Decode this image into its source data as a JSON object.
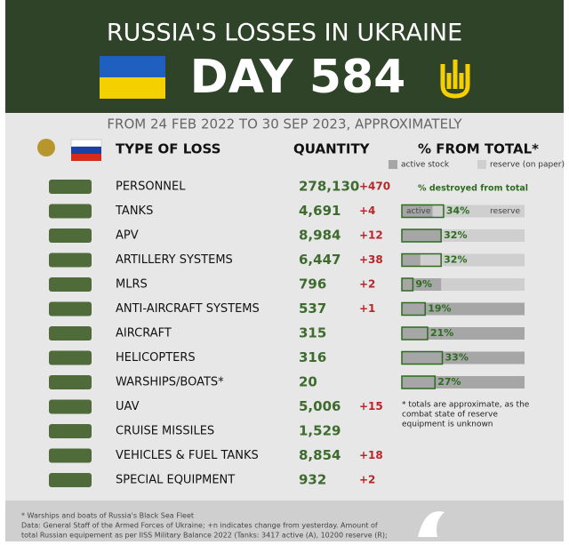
{
  "header": {
    "title": "RUSSIA'S LOSSES IN UKRAINE",
    "day": "DAY 584",
    "subtitle": "FROM 24 FEB 2022 TO 30 SEP 2023, APPROXIMATELY"
  },
  "columns": {
    "type": "TYPE OF LOSS",
    "quantity": "QUANTITY",
    "percent": "% FROM TOTAL*"
  },
  "legend": {
    "active": "active stock",
    "reserve": "reserve (on paper)",
    "destroyed": "% destroyed from total",
    "bar_active": "active",
    "bar_reserve": "reserve"
  },
  "rows": [
    {
      "name": "PERSONNEL",
      "quantity": "278,130",
      "change": "+470"
    },
    {
      "name": "TANKS",
      "quantity": "4,691",
      "change": "+4",
      "destroyed": 34,
      "destroyed_label": "34%",
      "active_share": 25
    },
    {
      "name": "APV",
      "quantity": "8,984",
      "change": "+12",
      "destroyed": 32,
      "destroyed_label": "32%",
      "active_share": 32
    },
    {
      "name": "ARTILLERY SYSTEMS",
      "quantity": "6,447",
      "change": "+38",
      "destroyed": 32,
      "destroyed_label": "32%",
      "active_share": 15
    },
    {
      "name": "MLRS",
      "quantity": "796",
      "change": "+2",
      "destroyed": 9,
      "destroyed_label": "9%",
      "active_share": 32
    },
    {
      "name": "ANTI-AIRCRAFT SYSTEMS",
      "quantity": "537",
      "change": "+1",
      "destroyed": 19,
      "destroyed_label": "19%",
      "active_share": 100
    },
    {
      "name": "AIRCRAFT",
      "quantity": "315",
      "destroyed": 21,
      "destroyed_label": "21%",
      "active_share": 100
    },
    {
      "name": "HELICOPTERS",
      "quantity": "316",
      "destroyed": 33,
      "destroyed_label": "33%",
      "active_share": 100
    },
    {
      "name": "WARSHIPS/BOATS*",
      "quantity": "20",
      "destroyed": 27,
      "destroyed_label": "27%",
      "active_share": 100
    },
    {
      "name": "UAV",
      "quantity": "5,006",
      "change": "+15"
    },
    {
      "name": "CRUISE MISSILES",
      "quantity": "1,529"
    },
    {
      "name": "VEHICLES & FUEL TANKS",
      "quantity": "8,854",
      "change": "+18"
    },
    {
      "name": "SPECIAL EQUIPMENT",
      "quantity": "932",
      "change": "+2"
    }
  ],
  "note": [
    "* totals are approximate, as the",
    "combat state of reserve",
    "equipment is unknown"
  ],
  "footer": [
    "* Warships and boats of Russia's Black Sea Fleet",
    "Data: General Staff of the Armed Forces of Ukraine; +n indicates change from yesterday. Amount of",
    "total Russian equipement as per IISS Military Balance 2022 (Tanks: 3417 active (A), 10200 reserve (R);"
  ]
}
